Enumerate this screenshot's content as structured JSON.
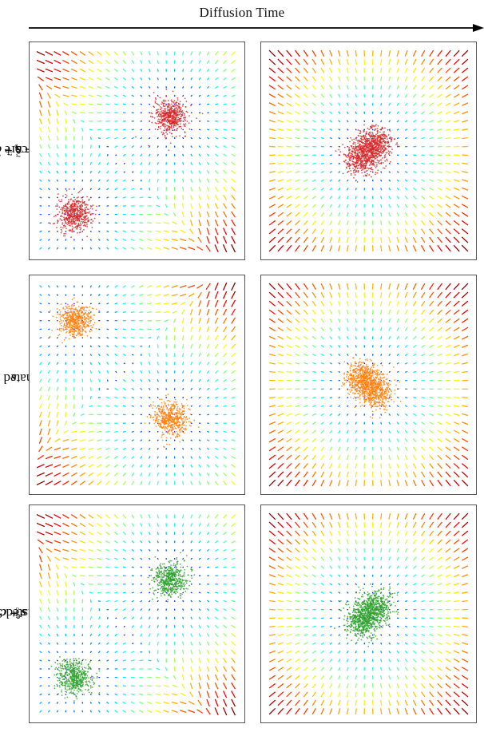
{
  "header": {
    "title": "Diffusion Time"
  },
  "rows": [
    {
      "key": "true",
      "label_text": "True Score ∇log p",
      "label_sup": "t",
      "label_sub": "r",
      "label_math": " = s + c",
      "label_math_sub": "φ*",
      "color": "#d62728",
      "panels": [
        {
          "centers": [
            [
              0.35,
              0.35
            ],
            [
              -0.65,
              -0.65
            ]
          ]
        },
        {
          "centers": [
            [
              0.07,
              0.07
            ],
            [
              -0.07,
              -0.07
            ]
          ]
        }
      ]
    },
    {
      "key": "estimated",
      "label_text": "Estimated Score ",
      "label_math": "s",
      "color": "#ff7f0e",
      "panels": [
        {
          "centers": [
            [
              -0.65,
              0.65
            ],
            [
              0.35,
              -0.35
            ]
          ]
        },
        {
          "centers": [
            [
              -0.07,
              0.07
            ],
            [
              0.07,
              -0.07
            ]
          ]
        }
      ]
    },
    {
      "key": "adjusted",
      "label_text": "Adjusted Score ",
      "label_math": "s + c",
      "label_math_sub": "φ∞",
      "color": "#2ca02c",
      "panels": [
        {
          "centers": [
            [
              0.35,
              0.35
            ],
            [
              -0.65,
              -0.65
            ]
          ]
        },
        {
          "centers": [
            [
              0.07,
              0.07
            ],
            [
              -0.07,
              -0.07
            ]
          ]
        }
      ]
    }
  ]
}
